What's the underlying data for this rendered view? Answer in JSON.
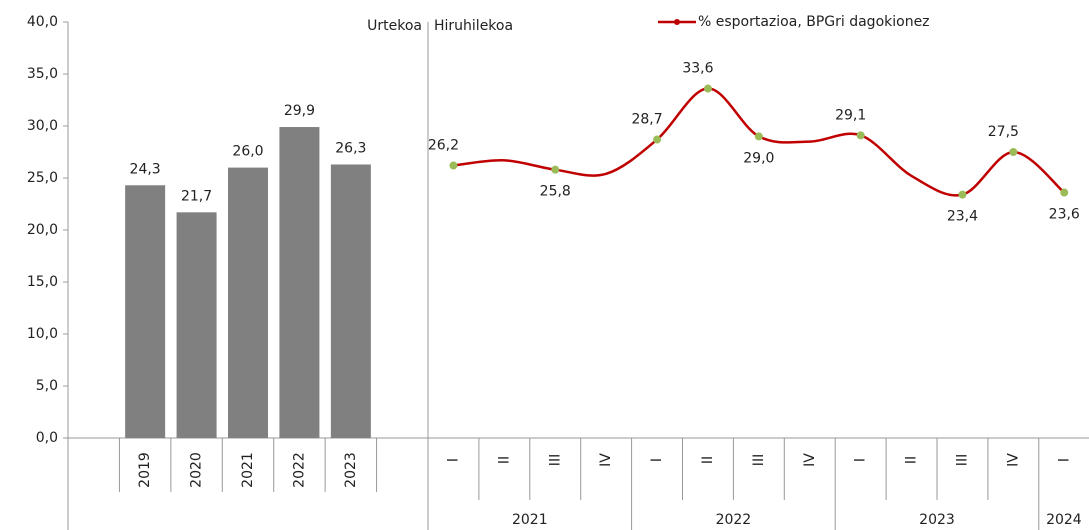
{
  "chart_data": [
    {
      "type": "bar",
      "subtitle": "Urtekoa",
      "categories": [
        null,
        "2019",
        "2020",
        "2021",
        "2022",
        "2023",
        null
      ],
      "values": [
        null,
        24.3,
        21.7,
        26.0,
        29.9,
        26.3,
        null
      ],
      "value_labels": [
        null,
        "24,3",
        "21,7",
        "26,0",
        "29,9",
        "26,3",
        null
      ],
      "color": "#808080",
      "ylim": [
        0,
        40
      ],
      "yticks": [
        {
          "value": 0,
          "label": "0,0"
        },
        {
          "value": 5,
          "label": "5,0"
        },
        {
          "value": 10,
          "label": "10,0"
        },
        {
          "value": 15,
          "label": "15,0"
        },
        {
          "value": 20,
          "label": "20,0"
        },
        {
          "value": 25,
          "label": "25,0"
        },
        {
          "value": 30,
          "label": "30,0"
        },
        {
          "value": 35,
          "label": "35,0"
        },
        {
          "value": 40,
          "label": "40,0"
        }
      ]
    },
    {
      "type": "line",
      "subtitle": "Hiruhilekoa",
      "categories": [
        "I",
        "II",
        "III",
        "IV",
        "I",
        "II",
        "III",
        "IV",
        "I",
        "II",
        "III",
        "IV",
        "I"
      ],
      "groups": [
        "2021",
        "2022",
        "2023",
        "2024"
      ],
      "series": [
        {
          "name": "% esportazioa, BPGri dagokionez",
          "color": "#c00000",
          "marker_color": "#9bbb59",
          "values": [
            26.2,
            26.7,
            25.8,
            25.4,
            28.7,
            33.6,
            29.0,
            28.5,
            29.1,
            25.2,
            23.4,
            27.5,
            23.6
          ],
          "value_labels": [
            "26,2",
            null,
            "25,8",
            null,
            "28,7",
            "33,6",
            "29,0",
            null,
            "29,1",
            null,
            "23,4",
            "27,5",
            "23,6"
          ]
        }
      ]
    }
  ]
}
